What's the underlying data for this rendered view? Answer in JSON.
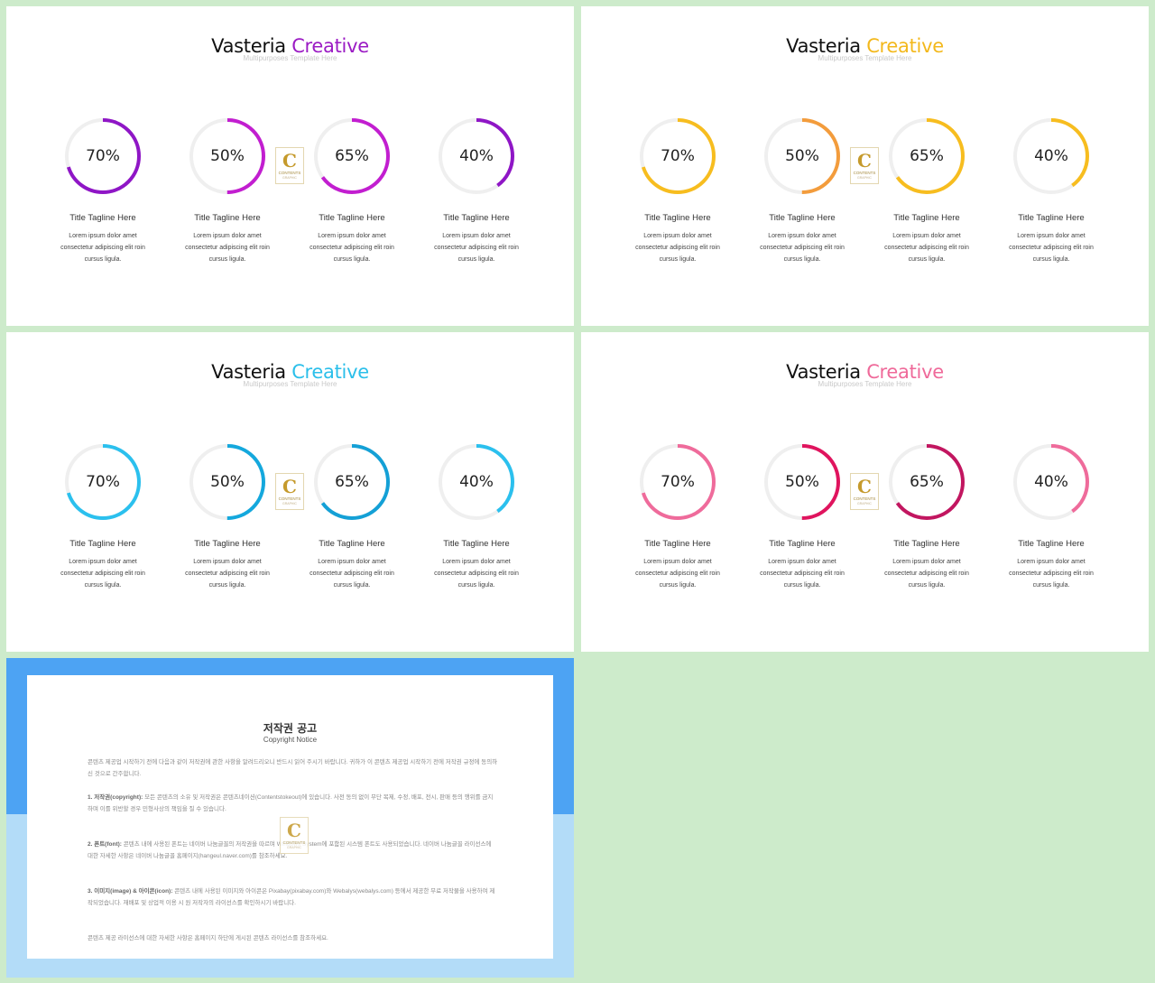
{
  "slides": [
    {
      "title_main": "Vasteria",
      "title_accent": "Creative",
      "subtitle": "Multipurposes Template Here",
      "accent_color": "#9b1bc4",
      "gauges": [
        {
          "value": 70,
          "label": "70%",
          "color": "#8f16c6"
        },
        {
          "value": 50,
          "label": "50%",
          "color": "#c21ed0"
        },
        {
          "value": 65,
          "label": "65%",
          "color": "#c21ed0"
        },
        {
          "value": 40,
          "label": "40%",
          "color": "#8f16c6"
        }
      ]
    },
    {
      "title_main": "Vasteria",
      "title_accent": "Creative",
      "subtitle": "Multipurposes Template Here",
      "accent_color": "#f3b81c",
      "gauges": [
        {
          "value": 70,
          "label": "70%",
          "color": "#f7bd1f"
        },
        {
          "value": 50,
          "label": "50%",
          "color": "#f39c3c"
        },
        {
          "value": 65,
          "label": "65%",
          "color": "#f7bd1f"
        },
        {
          "value": 40,
          "label": "40%",
          "color": "#f7bd1f"
        }
      ]
    },
    {
      "title_main": "Vasteria",
      "title_accent": "Creative",
      "subtitle": "Multipurposes Template Here",
      "accent_color": "#2bbfea",
      "gauges": [
        {
          "value": 70,
          "label": "70%",
          "color": "#2bc0ee"
        },
        {
          "value": 50,
          "label": "50%",
          "color": "#14a8dd"
        },
        {
          "value": 65,
          "label": "65%",
          "color": "#14a0d6"
        },
        {
          "value": 40,
          "label": "40%",
          "color": "#2bc0ee"
        }
      ]
    },
    {
      "title_main": "Vasteria",
      "title_accent": "Creative",
      "subtitle": "Multipurposes Template Here",
      "accent_color": "#ef6a9a",
      "gauges": [
        {
          "value": 70,
          "label": "70%",
          "color": "#ef6b9b"
        },
        {
          "value": 50,
          "label": "50%",
          "color": "#e0145e"
        },
        {
          "value": 65,
          "label": "65%",
          "color": "#c21660"
        },
        {
          "value": 40,
          "label": "40%",
          "color": "#ef6b9b"
        }
      ]
    }
  ],
  "caption": {
    "title": "Title  Tagline  Here",
    "line1": "Lorem ipsum dolor amet",
    "line2": "consectetur adipiscing elit roin",
    "line3": "cursus ligula."
  },
  "logo": {
    "letter": "C",
    "text": "CONTENTS",
    "subtext": "GRAPHIC"
  },
  "colors": {
    "background": "#cdebcb",
    "track": "#efefef",
    "copyright_band_top": "#4da3f3",
    "copyright_band_bottom": "#b3dcf8"
  },
  "copyright": {
    "title": "저작권 공고",
    "subtitle": "Copyright Notice",
    "intro": "콘텐츠 제공업 시작하기 전에 다음과 같이 저작권에 관한 사항을 알려드리오니 반드시 읽어 주시기 바랍니다. 귀하가 이 콘텐츠 제공업 시작하기 전에 저작권 규정에 동의하신 것으로 간주합니다.",
    "s1_head": "1. 저작권(copyright):",
    "s1_body": "모든 콘텐츠의 소유 및 저작권은 콘텐츠네이션(Contentstokeout)에 있습니다. 사전 동의 없이 무단 복제, 수정, 배포, 전시, 판매 등의 행위를 금지하며 이를 위반할 경우 민형사상의 책임을 질 수 있습니다.",
    "s2_head": "2. 폰트(font):",
    "s2_body": "콘텐츠 내에 사용된 폰트는 네이버 나눔글꼴의 저작권을 따르며 Windows System에 포함된 시스템 폰트도 사용되었습니다. 네이버 나눔글꼴 라이선스에 대한 자세한 사항은 네이버 나눔글꼴 홈페이지(hangeul.naver.com)를 참조하세요.",
    "s3_head": "3. 이미지(image) & 아이콘(icon):",
    "s3_body": "콘텐츠 내에 사용된 이미지와 아이콘은 Pixabay(pixabay.com)와 Webalys(webalys.com) 등에서 제공한 무료 저작물을 사용하여 제작되었습니다. 재배포 및 상업적 이용 시 원 저작자의 라이선스를 확인하시기 바랍니다.",
    "outro": "콘텐츠 제공 라이선스에 대한 자세한 사항은 홈페이지 하단에 게시된 콘텐츠 라이선스를 참조하세요."
  }
}
